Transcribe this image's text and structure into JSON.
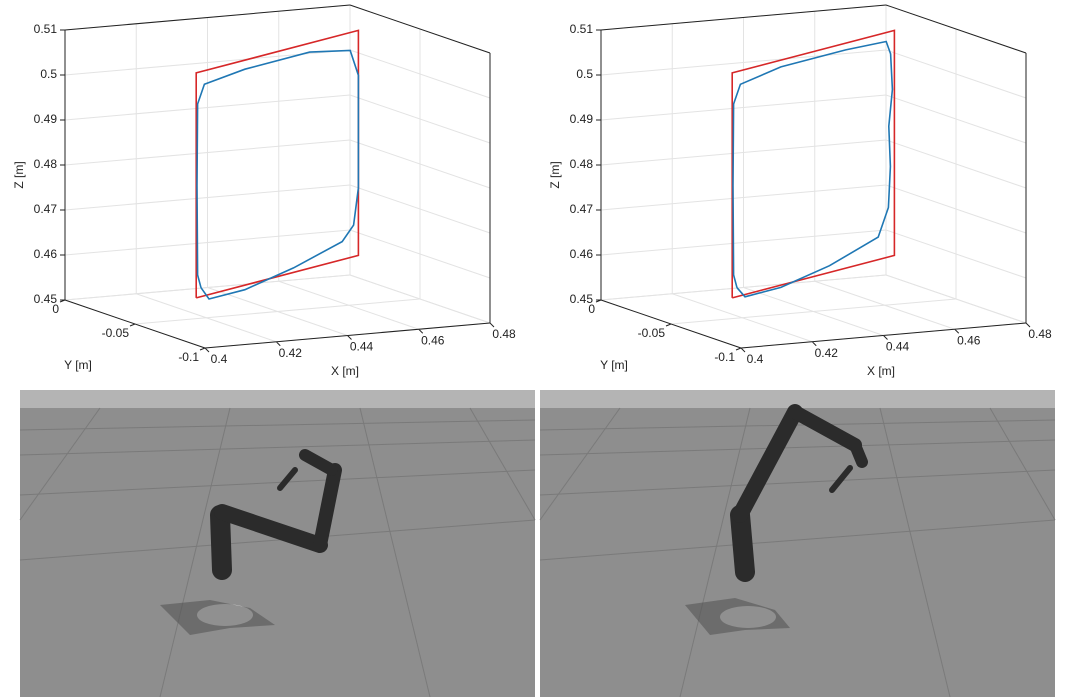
{
  "chart_data": [
    {
      "type": "line3d",
      "xlabel": "X [m]",
      "ylabel": "Y [m]",
      "zlabel": "Z [m]",
      "xlim": [
        0.4,
        0.48
      ],
      "ylim": [
        -0.1,
        0
      ],
      "zlim": [
        0.45,
        0.51
      ],
      "xticks": [
        0.4,
        0.42,
        0.44,
        0.46,
        0.48
      ],
      "yticks": [
        -0.1,
        -0.05,
        0
      ],
      "zticks": [
        0.45,
        0.46,
        0.47,
        0.48,
        0.49,
        0.5,
        0.51
      ],
      "grid": true,
      "series": [
        {
          "color": "#d62728",
          "x": [
            0.416,
            0.416,
            0.48,
            0.48,
            0.416
          ],
          "y": [
            -0.053,
            -0.053,
            -0.006,
            -0.006,
            -0.053
          ],
          "z": [
            0.455,
            0.505,
            0.505,
            0.455,
            0.455
          ]
        },
        {
          "color": "#1f77b4",
          "x": [
            0.4179,
            0.4166,
            0.4163,
            0.4166,
            0.4192,
            0.4352,
            0.4608,
            0.4768,
            0.48,
            0.48,
            0.4781,
            0.4736,
            0.4544,
            0.4352,
            0.4211,
            0.4179
          ],
          "y": [
            -0.0516,
            -0.0525,
            -0.0528,
            -0.0525,
            -0.0507,
            -0.0389,
            -0.0201,
            -0.0083,
            -0.006,
            -0.006,
            -0.0074,
            -0.0107,
            -0.0248,
            -0.0389,
            -0.0492,
            -0.0516
          ],
          "z": [
            0.457,
            0.46,
            0.48,
            0.498,
            0.502,
            0.503,
            0.503,
            0.501,
            0.495,
            0.47,
            0.462,
            0.459,
            0.456,
            0.454,
            0.454,
            0.457
          ]
        }
      ]
    },
    {
      "type": "line3d",
      "xlabel": "X [m]",
      "ylabel": "Y [m]",
      "zlabel": "Z [m]",
      "xlim": [
        0.4,
        0.48
      ],
      "ylim": [
        -0.1,
        0
      ],
      "zlim": [
        0.45,
        0.51
      ],
      "xticks": [
        0.4,
        0.42,
        0.44,
        0.46,
        0.48
      ],
      "yticks": [
        -0.1,
        -0.05,
        0
      ],
      "zticks": [
        0.45,
        0.46,
        0.47,
        0.48,
        0.49,
        0.5,
        0.51
      ],
      "grid": true,
      "series": [
        {
          "color": "#d62728",
          "x": [
            0.416,
            0.416,
            0.48,
            0.48,
            0.416
          ],
          "y": [
            -0.053,
            -0.053,
            -0.006,
            -0.006,
            -0.053
          ],
          "z": [
            0.455,
            0.505,
            0.505,
            0.455,
            0.455
          ]
        },
        {
          "color": "#1f77b4",
          "x": [
            0.4179,
            0.4166,
            0.4163,
            0.4166,
            0.4192,
            0.4352,
            0.4608,
            0.4768,
            0.4785,
            0.4792,
            0.4778,
            0.4784,
            0.4776,
            0.4736,
            0.4544,
            0.4352,
            0.4211,
            0.4179
          ],
          "y": [
            -0.0516,
            -0.0525,
            -0.0528,
            -0.0525,
            -0.0507,
            -0.0389,
            -0.0201,
            -0.0083,
            -0.0071,
            -0.0066,
            -0.0076,
            -0.0072,
            -0.0078,
            -0.0107,
            -0.0248,
            -0.0389,
            -0.0492,
            -0.0516
          ],
          "z": [
            0.457,
            0.46,
            0.48,
            0.498,
            0.502,
            0.5035,
            0.5035,
            0.503,
            0.5,
            0.492,
            0.484,
            0.475,
            0.466,
            0.46,
            0.4565,
            0.4545,
            0.4545,
            0.457
          ]
        }
      ]
    }
  ]
}
